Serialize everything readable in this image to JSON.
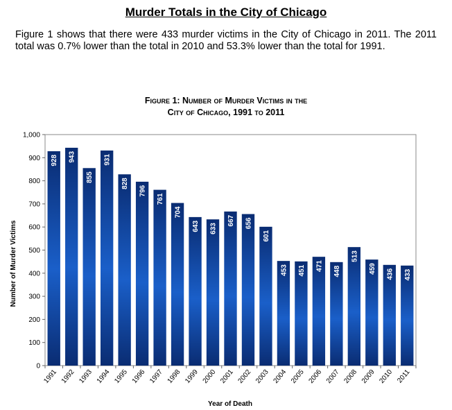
{
  "page": {
    "heading": "Murder Totals in the City of Chicago",
    "intro": "Figure 1 shows that there were 433 murder victims in the City of Chicago in 2011. The 2011 total was 0.7% lower than the total in 2010 and 53.3% lower than the total for 1991."
  },
  "chart_data": {
    "type": "bar",
    "title_line1": "Figure 1: Number of Murder Victims in the",
    "title_line2": "City of Chicago, 1991 to 2011",
    "xlabel": "Year of Death",
    "ylabel": "Number of Murder Victims",
    "ylim": [
      0,
      1000
    ],
    "yticks": [
      0,
      100,
      200,
      300,
      400,
      500,
      600,
      700,
      800,
      900,
      1000
    ],
    "ytick_labels": [
      "0",
      "100",
      "200",
      "300",
      "400",
      "500",
      "600",
      "700",
      "800",
      "900",
      "1,000"
    ],
    "grid": false,
    "categories": [
      "1991",
      "1992",
      "1993",
      "1994",
      "1995",
      "1996",
      "1997",
      "1998",
      "1999",
      "2000",
      "2001",
      "2002",
      "2003",
      "2004",
      "2005",
      "2006",
      "2007",
      "2008",
      "2009",
      "2010",
      "2011"
    ],
    "values": [
      928,
      943,
      855,
      931,
      828,
      796,
      761,
      704,
      643,
      633,
      667,
      656,
      601,
      453,
      451,
      471,
      448,
      513,
      459,
      436,
      433
    ],
    "bar_color": "#0a3a8c"
  }
}
